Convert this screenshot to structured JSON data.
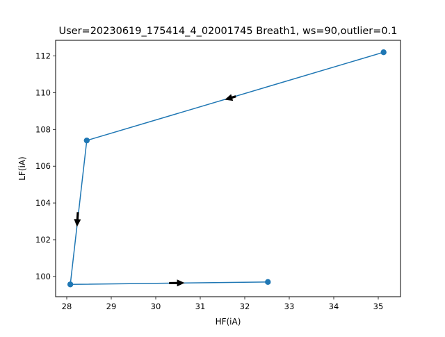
{
  "chart_data": {
    "type": "line",
    "title": "User=20230619_175414_4_02001745 Breath1, ws=90,outlier=0.1",
    "xlabel": "HF(iA)",
    "ylabel": "LF(iA)",
    "xlim": [
      27.75,
      35.5
    ],
    "ylim": [
      98.9,
      112.85
    ],
    "xticks": [
      28,
      29,
      30,
      31,
      32,
      33,
      34,
      35
    ],
    "yticks": [
      100,
      102,
      104,
      106,
      108,
      110,
      112
    ],
    "grid": false,
    "series": [
      {
        "color": "#1f77b4",
        "marker": "circle",
        "points": [
          {
            "x": 35.12,
            "y": 112.2
          },
          {
            "x": 28.45,
            "y": 107.4
          },
          {
            "x": 28.08,
            "y": 99.57
          },
          {
            "x": 32.52,
            "y": 99.7
          }
        ]
      }
    ],
    "arrows": [
      {
        "x": 31.8,
        "y": 109.8,
        "dx": -0.25,
        "dy": -0.18
      },
      {
        "x": 28.25,
        "y": 103.5,
        "dx": -0.02,
        "dy": -0.8
      },
      {
        "x": 30.3,
        "y": 99.64,
        "dx": 0.35,
        "dy": 0.01
      }
    ],
    "arrow_color": "#000000"
  }
}
